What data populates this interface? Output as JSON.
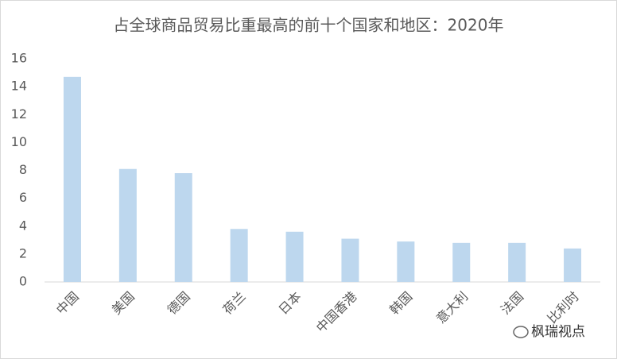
{
  "chart_data": {
    "type": "bar",
    "title": "占全球商品贸易比重最高的前十个国家和地区：2020年",
    "categories": [
      "中国",
      "美国",
      "德国",
      "荷兰",
      "日本",
      "中国香港",
      "韩国",
      "意大利",
      "法国",
      "比利时"
    ],
    "values": [
      14.7,
      8.1,
      7.8,
      3.8,
      3.6,
      3.1,
      2.9,
      2.8,
      2.8,
      2.4
    ],
    "color": "#bdd7ee",
    "ylim": [
      0,
      16
    ],
    "yticks": [
      0,
      2,
      4,
      6,
      8,
      10,
      12,
      14,
      16
    ],
    "grid": false,
    "watermark": "枫瑞视点"
  }
}
